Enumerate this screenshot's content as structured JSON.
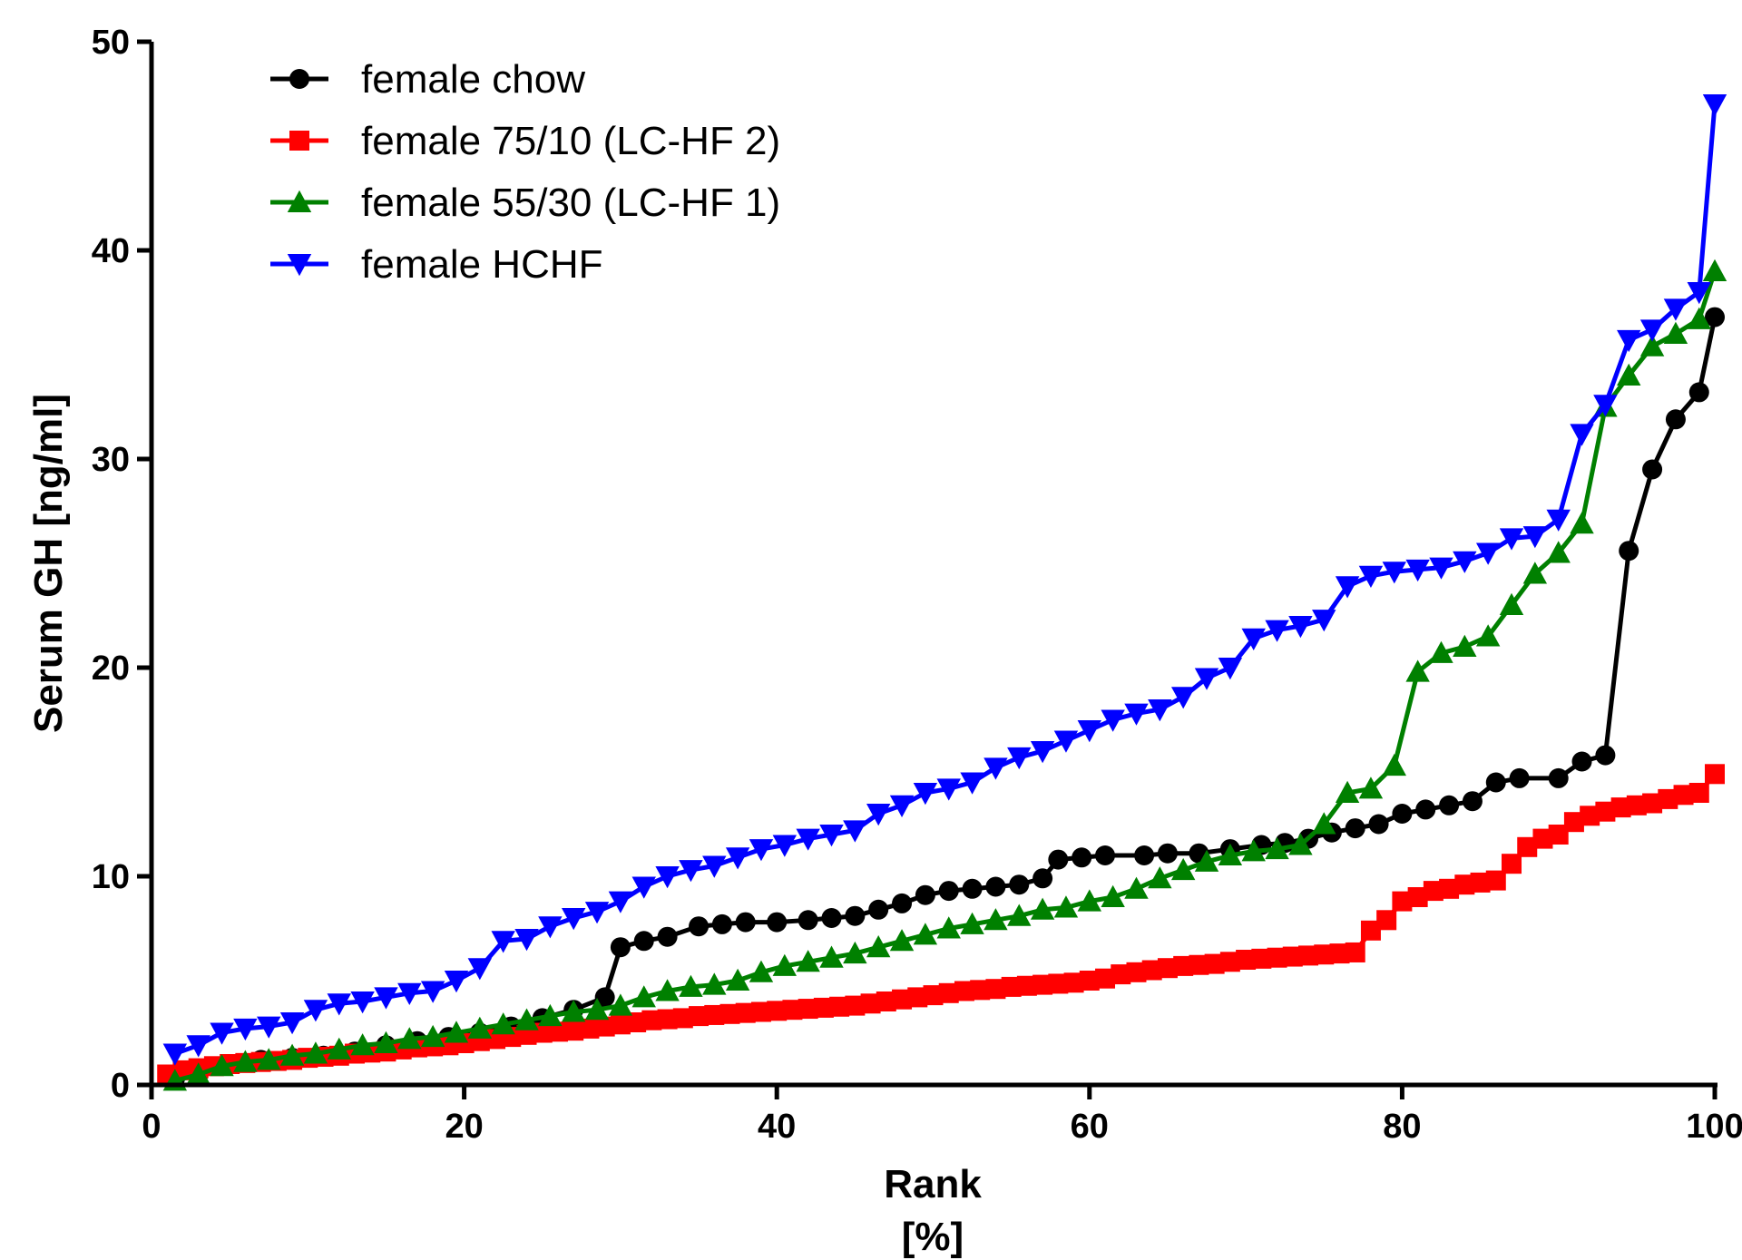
{
  "chart_data": {
    "type": "line",
    "title": "",
    "xlabel_lines": [
      "Rank",
      "[%]"
    ],
    "ylabel": "Serum GH [ng/ml]",
    "xlim": [
      0,
      100
    ],
    "ylim": [
      0,
      50
    ],
    "xticks": [
      "0",
      "20",
      "40",
      "60",
      "80",
      "100"
    ],
    "yticks": [
      "0",
      "10",
      "20",
      "30",
      "40",
      "50"
    ],
    "grid": false,
    "legend_position": "top-left",
    "series": [
      {
        "name": "female chow",
        "color": "#000000",
        "marker": "circle",
        "x": [
          1.5,
          3,
          5,
          7,
          9,
          11,
          13,
          15,
          17,
          19,
          21,
          23,
          25,
          27,
          29,
          30,
          31.5,
          33,
          35,
          36.5,
          38,
          40,
          42,
          43.5,
          45,
          46.5,
          48,
          49.5,
          51,
          52.5,
          54,
          55.5,
          57,
          58,
          59.5,
          61,
          63.5,
          65,
          67,
          69,
          71,
          72.5,
          74,
          75.5,
          77,
          78.5,
          80,
          81.5,
          83,
          84.5,
          86,
          87.5,
          90,
          91.5,
          93,
          94.5,
          96,
          97.5,
          99,
          100
        ],
        "y": [
          0.3,
          0.5,
          1.0,
          1.2,
          1.3,
          1.4,
          1.6,
          1.9,
          2.1,
          2.3,
          2.5,
          2.8,
          3.2,
          3.6,
          4.2,
          6.6,
          6.9,
          7.1,
          7.6,
          7.7,
          7.8,
          7.8,
          7.9,
          8.0,
          8.1,
          8.4,
          8.7,
          9.1,
          9.3,
          9.4,
          9.5,
          9.6,
          9.9,
          10.8,
          10.9,
          11.0,
          11.0,
          11.1,
          11.1,
          11.3,
          11.5,
          11.6,
          11.8,
          12.1,
          12.3,
          12.5,
          13.0,
          13.2,
          13.4,
          13.6,
          14.5,
          14.7,
          14.7,
          15.5,
          15.8,
          25.6,
          29.5,
          31.9,
          33.2,
          36.8
        ]
      },
      {
        "name": "female 75/10 (LC-HF 2)",
        "color": "#ff0000",
        "marker": "square",
        "x": [
          1,
          2,
          3,
          4,
          5,
          6,
          7,
          8,
          9,
          10,
          11,
          12,
          13,
          14,
          15,
          16,
          17,
          18,
          19,
          20,
          21,
          22,
          23,
          24,
          25,
          26,
          27,
          28,
          29,
          30,
          31,
          32,
          33,
          34,
          35,
          36,
          37,
          38,
          39,
          40,
          41,
          42,
          43,
          44,
          45,
          46,
          47,
          48,
          49,
          50,
          51,
          52,
          53,
          54,
          55,
          56,
          57,
          58,
          59,
          60,
          61,
          62,
          63,
          64,
          65,
          66,
          67,
          68,
          69,
          70,
          71,
          72,
          73,
          74,
          75,
          76,
          77,
          78,
          79,
          80,
          81,
          82,
          83,
          84,
          85,
          86,
          87,
          88,
          89,
          90,
          91,
          92,
          93,
          94,
          95,
          96,
          97,
          98,
          99,
          100
        ],
        "y": [
          0.5,
          0.7,
          0.8,
          0.9,
          1.0,
          1.05,
          1.1,
          1.15,
          1.2,
          1.3,
          1.35,
          1.4,
          1.5,
          1.55,
          1.6,
          1.7,
          1.8,
          1.85,
          1.9,
          2.0,
          2.1,
          2.2,
          2.3,
          2.4,
          2.5,
          2.55,
          2.6,
          2.7,
          2.8,
          2.9,
          3.0,
          3.1,
          3.15,
          3.2,
          3.3,
          3.35,
          3.4,
          3.45,
          3.5,
          3.55,
          3.6,
          3.65,
          3.7,
          3.75,
          3.8,
          3.9,
          4.0,
          4.1,
          4.2,
          4.3,
          4.4,
          4.5,
          4.55,
          4.6,
          4.7,
          4.75,
          4.8,
          4.85,
          4.9,
          5.0,
          5.1,
          5.3,
          5.4,
          5.5,
          5.6,
          5.7,
          5.75,
          5.8,
          5.9,
          6.0,
          6.05,
          6.1,
          6.15,
          6.2,
          6.25,
          6.3,
          6.35,
          7.4,
          7.9,
          8.8,
          9.0,
          9.3,
          9.4,
          9.6,
          9.7,
          9.8,
          10.6,
          11.4,
          11.8,
          12.0,
          12.6,
          12.9,
          13.1,
          13.3,
          13.4,
          13.5,
          13.7,
          13.9,
          14.0,
          14.9
        ]
      },
      {
        "name": "female 55/30 (LC-HF 1)",
        "color": "#008000",
        "marker": "triangle-up",
        "x": [
          1.5,
          3,
          4.5,
          6,
          7.5,
          9,
          10.5,
          12,
          13.5,
          15,
          16.5,
          18,
          19.5,
          21,
          22.5,
          24,
          25.5,
          27,
          28.5,
          30,
          31.5,
          33,
          34.5,
          36,
          37.5,
          39,
          40.5,
          42,
          43.5,
          45,
          46.5,
          48,
          49.5,
          51,
          52.5,
          54,
          55.5,
          57,
          58.5,
          60,
          61.5,
          63,
          64.5,
          66,
          67.5,
          69,
          70.5,
          72,
          73.5,
          75,
          76.5,
          78,
          79.5,
          81,
          82.5,
          84,
          85.5,
          87,
          88.5,
          90,
          91.5,
          93,
          94.5,
          96,
          97.5,
          99,
          100
        ],
        "y": [
          0.2,
          0.5,
          0.9,
          1.1,
          1.2,
          1.4,
          1.5,
          1.7,
          1.9,
          2.0,
          2.2,
          2.3,
          2.5,
          2.7,
          2.9,
          3.1,
          3.3,
          3.5,
          3.6,
          3.8,
          4.2,
          4.5,
          4.7,
          4.8,
          5.0,
          5.4,
          5.7,
          5.9,
          6.1,
          6.3,
          6.6,
          6.9,
          7.2,
          7.5,
          7.7,
          7.9,
          8.1,
          8.4,
          8.5,
          8.8,
          9.0,
          9.4,
          9.9,
          10.3,
          10.7,
          11.0,
          11.2,
          11.3,
          11.5,
          12.5,
          14.0,
          14.2,
          15.3,
          19.8,
          20.7,
          21.0,
          21.5,
          23.0,
          24.5,
          25.5,
          26.9,
          32.5,
          34.0,
          35.4,
          36.0,
          36.7,
          39.0
        ]
      },
      {
        "name": "female HCHF",
        "color": "#0000ff",
        "marker": "triangle-down",
        "x": [
          1.5,
          3,
          4.5,
          6,
          7.5,
          9,
          10.5,
          12,
          13.5,
          15,
          16.5,
          18,
          19.5,
          21,
          22.5,
          24,
          25.5,
          27,
          28.5,
          30,
          31.5,
          33,
          34.5,
          36,
          37.5,
          39,
          40.5,
          42,
          43.5,
          45,
          46.5,
          48,
          49.5,
          51,
          52.5,
          54,
          55.5,
          57,
          58.5,
          60,
          61.5,
          63,
          64.5,
          66,
          67.5,
          69,
          70.5,
          72,
          73.5,
          75,
          76.5,
          78,
          79.5,
          81,
          82.5,
          84,
          85.5,
          87,
          88.5,
          90,
          91.5,
          93,
          94.5,
          96,
          97.5,
          99,
          100
        ],
        "y": [
          1.5,
          1.9,
          2.5,
          2.7,
          2.8,
          3.0,
          3.6,
          3.9,
          4.0,
          4.2,
          4.4,
          4.5,
          5.0,
          5.6,
          6.9,
          7.0,
          7.6,
          8.0,
          8.3,
          8.8,
          9.5,
          10.0,
          10.3,
          10.5,
          10.9,
          11.3,
          11.5,
          11.8,
          12.0,
          12.2,
          13.0,
          13.4,
          14.0,
          14.2,
          14.5,
          15.2,
          15.7,
          16.0,
          16.5,
          17.0,
          17.5,
          17.8,
          18.0,
          18.6,
          19.5,
          20.0,
          21.4,
          21.8,
          22.0,
          22.3,
          23.9,
          24.4,
          24.6,
          24.7,
          24.8,
          25.1,
          25.5,
          26.2,
          26.3,
          27.1,
          31.2,
          32.6,
          35.7,
          36.2,
          37.2,
          38.0,
          47.0
        ]
      }
    ]
  }
}
